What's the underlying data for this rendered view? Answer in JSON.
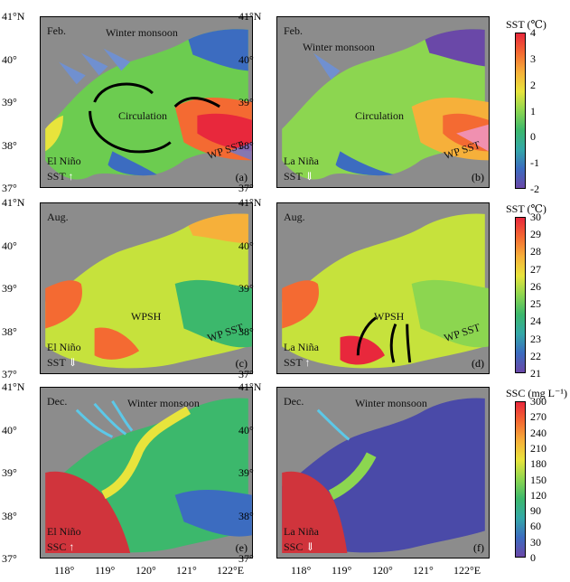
{
  "axes": {
    "lat_labels": [
      "41°N",
      "40°",
      "39°",
      "38°",
      "37°"
    ],
    "lon_labels": [
      "118°",
      "119°",
      "120°",
      "121°",
      "122°E"
    ]
  },
  "panels": [
    {
      "id": "a",
      "month": "Feb.",
      "event": "El Niño",
      "index": "SST",
      "arrow": "↑",
      "label": "(a)",
      "annotations": [
        "Winter monsoon",
        "Circulation",
        "WP SST"
      ]
    },
    {
      "id": "b",
      "month": "Feb.",
      "event": "La Niña",
      "index": "SST",
      "arrow": "⇓",
      "label": "(b)",
      "annotations": [
        "Winter monsoon",
        "Circulation",
        "WP SST"
      ]
    },
    {
      "id": "c",
      "month": "Aug.",
      "event": "El Niño",
      "index": "SST",
      "arrow": "⇓",
      "label": "(c)",
      "annotations": [
        "WPSH",
        "WP SST"
      ]
    },
    {
      "id": "d",
      "month": "Aug.",
      "event": "La Niña",
      "index": "SST",
      "arrow": "↑",
      "label": "(d)",
      "annotations": [
        "WPSH",
        "WP SST"
      ]
    },
    {
      "id": "e",
      "month": "Dec.",
      "event": "El Niño",
      "index": "SSC",
      "arrow": "↑",
      "label": "(e)",
      "annotations": [
        "Winter monsoon"
      ]
    },
    {
      "id": "f",
      "month": "Dec.",
      "event": "La Niña",
      "index": "SSC",
      "arrow": "⇓",
      "label": "(f)",
      "annotations": [
        "Winter monsoon"
      ]
    }
  ],
  "colorbars": [
    {
      "title": "SST (℃)",
      "ticks": [
        "4",
        "3",
        "2",
        "1",
        "0",
        "-1",
        "-2"
      ],
      "colors": [
        "#e8283c",
        "#f46a32",
        "#f6b03a",
        "#e8e43c",
        "#8cd650",
        "#3cb86c",
        "#34a8a8",
        "#3c6cc0",
        "#6a48a8"
      ]
    },
    {
      "title": "SST (℃)",
      "ticks": [
        "30",
        "29",
        "28",
        "27",
        "26",
        "25",
        "24",
        "23",
        "22",
        "21"
      ],
      "colors": [
        "#e8283c",
        "#f46a32",
        "#f6b03a",
        "#e8e43c",
        "#8cd650",
        "#3cb86c",
        "#34a8a8",
        "#3c6cc0",
        "#6a48a8"
      ]
    },
    {
      "title": "SSC (mg L⁻¹)",
      "ticks": [
        "300",
        "270",
        "240",
        "210",
        "180",
        "150",
        "120",
        "90",
        "60",
        "30",
        "0"
      ],
      "colors": [
        "#e8283c",
        "#f46a32",
        "#f6b03a",
        "#e8e43c",
        "#8cd650",
        "#3cb86c",
        "#34a8a8",
        "#3c6cc0",
        "#6a48a8"
      ]
    }
  ]
}
